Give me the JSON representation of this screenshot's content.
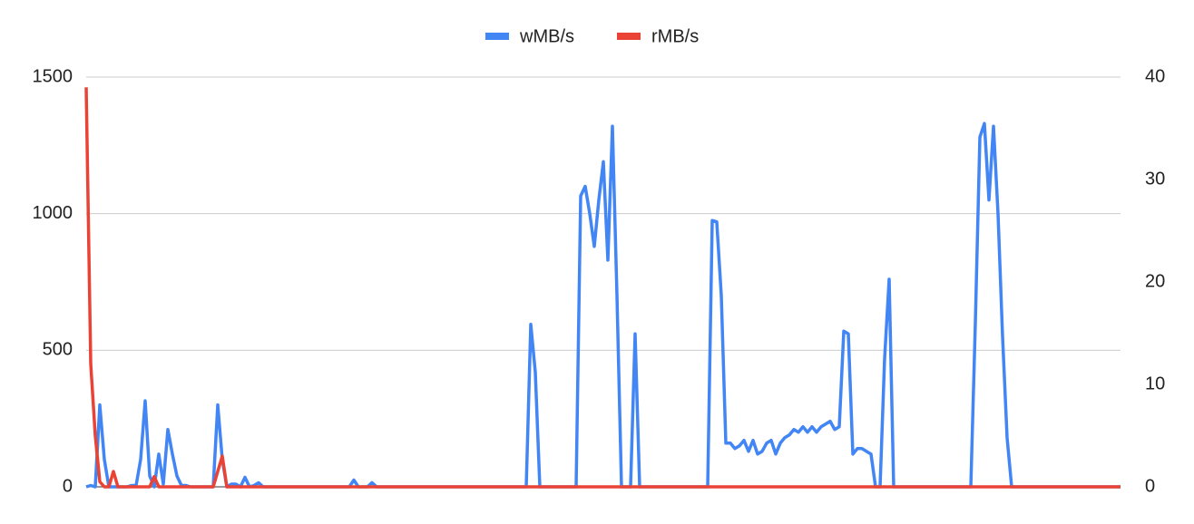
{
  "chart_data": {
    "type": "line",
    "legend": "top",
    "grid": true,
    "ylim": [
      0,
      1500
    ],
    "yticks": [
      0,
      500,
      1000,
      1500
    ],
    "y2lim": [
      0,
      40
    ],
    "y2ticks": [
      0,
      10,
      20,
      30,
      40
    ],
    "series": [
      {
        "name": "wMB/s",
        "color": "#4285f4",
        "axis": "y",
        "values": [
          0,
          5,
          0,
          300,
          100,
          0,
          0,
          0,
          0,
          0,
          5,
          5,
          100,
          315,
          40,
          0,
          120,
          10,
          210,
          120,
          40,
          5,
          5,
          0,
          0,
          0,
          0,
          0,
          0,
          300,
          100,
          0,
          10,
          10,
          0,
          35,
          0,
          5,
          15,
          0,
          0,
          0,
          0,
          0,
          0,
          0,
          0,
          0,
          0,
          0,
          0,
          0,
          0,
          0,
          0,
          0,
          0,
          0,
          0,
          25,
          0,
          0,
          0,
          15,
          0,
          0,
          0,
          0,
          0,
          0,
          0,
          0,
          0,
          0,
          0,
          0,
          0,
          0,
          0,
          0,
          0,
          0,
          0,
          0,
          0,
          0,
          0,
          0,
          0,
          0,
          0,
          0,
          0,
          0,
          0,
          0,
          0,
          0,
          595,
          420,
          0,
          0,
          0,
          0,
          0,
          0,
          0,
          0,
          0,
          1065,
          1100,
          1000,
          880,
          1050,
          1190,
          830,
          1320,
          700,
          0,
          0,
          0,
          560,
          0,
          0,
          0,
          0,
          0,
          0,
          0,
          0,
          0,
          0,
          0,
          0,
          0,
          0,
          0,
          0,
          975,
          970,
          700,
          160,
          160,
          140,
          150,
          170,
          130,
          170,
          120,
          130,
          160,
          170,
          120,
          160,
          180,
          190,
          210,
          200,
          220,
          200,
          220,
          200,
          220,
          230,
          240,
          210,
          220,
          570,
          560,
          120,
          140,
          140,
          130,
          120,
          0,
          0,
          470,
          760,
          0,
          0,
          0,
          0,
          0,
          0,
          0,
          0,
          0,
          0,
          0,
          0,
          0,
          0,
          0,
          0,
          0,
          0,
          600,
          1280,
          1330,
          1050,
          1320,
          1000,
          550,
          180,
          0,
          0,
          0,
          0,
          0,
          0,
          0,
          0,
          0,
          0,
          0,
          0,
          0,
          0,
          0,
          0,
          0,
          0,
          0,
          0,
          0,
          0,
          0,
          0,
          0
        ]
      },
      {
        "name": "rMB/s",
        "color": "#ea4335",
        "axis": "y2",
        "values": [
          39,
          12,
          5,
          0.5,
          0,
          0,
          1.5,
          0,
          0,
          0,
          0,
          0,
          0,
          0,
          0,
          1,
          0,
          0,
          0,
          0,
          0,
          0,
          0,
          0,
          0,
          0,
          0,
          0,
          0,
          1.5,
          3,
          0,
          0,
          0,
          0,
          0,
          0,
          0,
          0,
          0,
          0,
          0,
          0,
          0,
          0,
          0,
          0,
          0,
          0,
          0,
          0,
          0,
          0,
          0,
          0,
          0,
          0,
          0,
          0,
          0,
          0,
          0,
          0,
          0,
          0,
          0,
          0,
          0,
          0,
          0,
          0,
          0,
          0,
          0,
          0,
          0,
          0,
          0,
          0,
          0,
          0,
          0,
          0,
          0,
          0,
          0,
          0,
          0,
          0,
          0,
          0,
          0,
          0,
          0,
          0,
          0,
          0,
          0,
          0,
          0,
          0,
          0,
          0,
          0,
          0,
          0,
          0,
          0,
          0,
          0,
          0,
          0,
          0,
          0,
          0,
          0,
          0,
          0,
          0,
          0,
          0,
          0,
          0,
          0,
          0,
          0,
          0,
          0,
          0,
          0,
          0,
          0,
          0,
          0,
          0,
          0,
          0,
          0,
          0,
          0,
          0,
          0,
          0,
          0,
          0,
          0,
          0,
          0,
          0,
          0,
          0,
          0,
          0,
          0,
          0,
          0,
          0,
          0,
          0,
          0,
          0,
          0,
          0,
          0,
          0,
          0,
          0,
          0,
          0,
          0,
          0,
          0,
          0,
          0,
          0,
          0,
          0,
          0,
          0,
          0,
          0,
          0,
          0,
          0,
          0,
          0,
          0,
          0,
          0,
          0,
          0,
          0,
          0,
          0,
          0,
          0,
          0,
          0,
          0,
          0,
          0,
          0,
          0,
          0,
          0,
          0,
          0,
          0,
          0,
          0,
          0,
          0,
          0,
          0,
          0,
          0,
          0,
          0,
          0,
          0,
          0,
          0,
          0,
          0,
          0,
          0,
          0,
          0,
          0
        ]
      }
    ]
  }
}
